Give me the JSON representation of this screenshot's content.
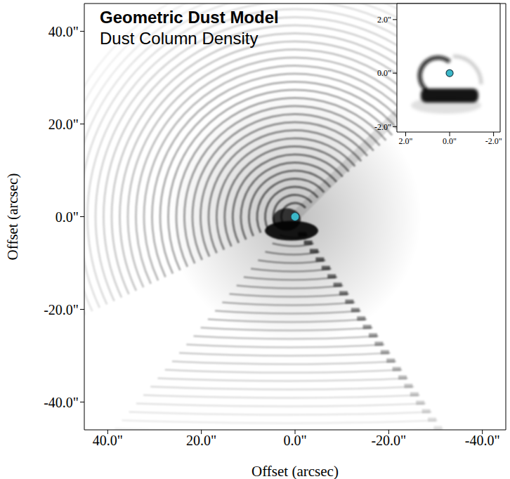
{
  "chart_data": [
    {
      "type": "scatter",
      "title": "Geometric Dust Model",
      "subtitle": "Dust Column Density",
      "x_label": "Offset (arcsec)",
      "y_label": "Offset (arcsec)",
      "xlim": [
        45,
        -45
      ],
      "ylim": [
        -46,
        46
      ],
      "xticks": [
        {
          "value": 40,
          "label": "40.0\""
        },
        {
          "value": 20,
          "label": "20.0\""
        },
        {
          "value": 0,
          "label": "0.0\""
        },
        {
          "value": -20,
          "label": "-20.0\""
        },
        {
          "value": -40,
          "label": "-40.0\""
        }
      ],
      "yticks": [
        {
          "value": -40,
          "label": "-40.0\""
        },
        {
          "value": -20,
          "label": "-20.0\""
        },
        {
          "value": 0,
          "label": "0.0\""
        },
        {
          "value": 20,
          "label": "20.0\""
        },
        {
          "value": 40,
          "label": "40.0\""
        }
      ],
      "series": [
        {
          "color": "#3bb8c9",
          "marker": "circle",
          "x": [
            0
          ],
          "values": [
            0
          ]
        }
      ]
    },
    {
      "type": "scatter",
      "xlim": [
        2.4,
        -2.3
      ],
      "ylim": [
        -2.2,
        2.6
      ],
      "xticks": [
        {
          "value": 2,
          "label": "2.0\""
        },
        {
          "value": 0,
          "label": "0.0\""
        },
        {
          "value": -2,
          "label": "-2.0\""
        }
      ],
      "yticks": [
        {
          "value": -2,
          "label": "-2.0\""
        },
        {
          "value": 0,
          "label": "0.0\""
        },
        {
          "value": 2,
          "label": "2.0\""
        }
      ],
      "series": [
        {
          "color": "#3bb8c9",
          "marker": "circle",
          "x": [
            0
          ],
          "values": [
            0
          ]
        }
      ]
    }
  ]
}
